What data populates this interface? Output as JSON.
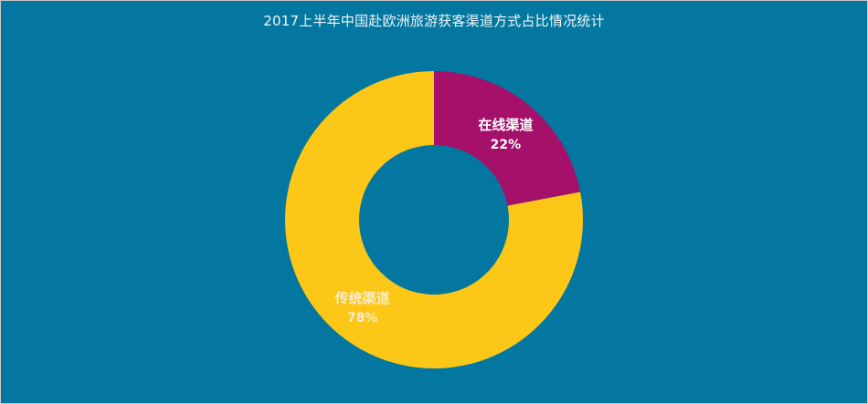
{
  "chart_data": {
    "type": "pie",
    "variant": "donut",
    "title": "2017上半年中国赴欧洲旅游获客渠道方式占比情况统计",
    "slices": [
      {
        "label": "在线渠道",
        "value": 22,
        "value_label": "22%",
        "color": "#a5106b",
        "label_color": "#ffffff"
      },
      {
        "label": "传统渠道",
        "value": 78,
        "value_label": "78%",
        "color": "#fcc717",
        "label_color": "#f4ecd6"
      }
    ],
    "background_color": "#0377a0",
    "legend": "none"
  }
}
